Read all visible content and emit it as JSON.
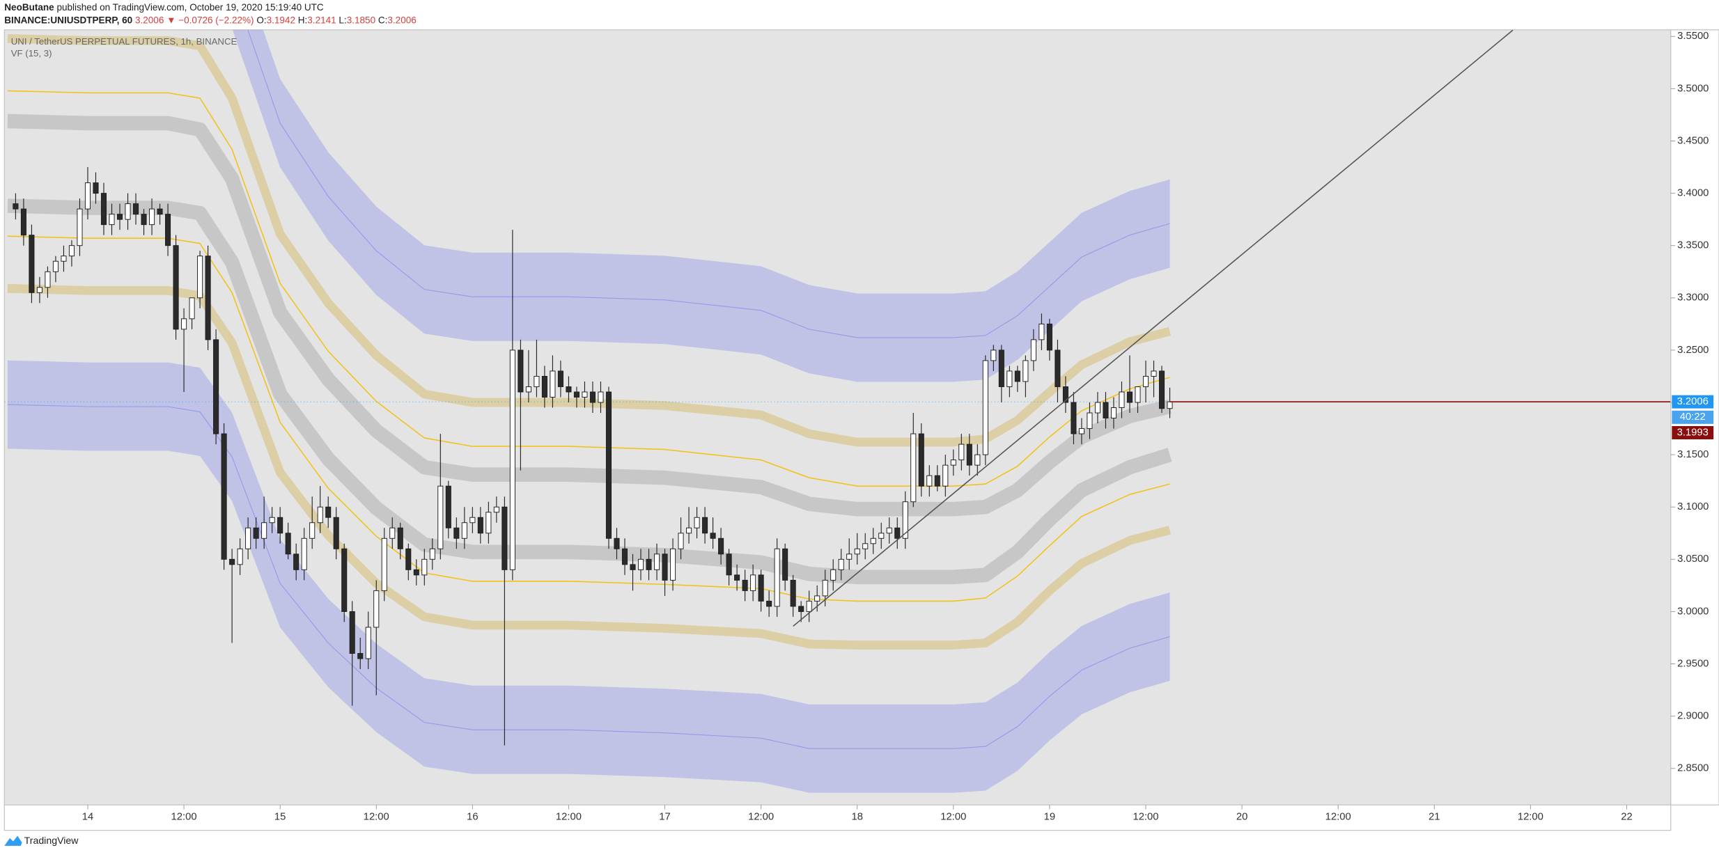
{
  "header": {
    "author": "NeoButane",
    "published": " published on TradingView.com, October 19, 2020 15:19:40 UTC",
    "symbol": "BINANCE:UNIUSDTPERP, 60",
    "price": "3.2006",
    "change": "▼ −0.0726 (−2.22%)",
    "ohlc": [
      {
        "key": "O:",
        "value": "3.1942"
      },
      {
        "key": "H:",
        "value": "3.2141"
      },
      {
        "key": "L:",
        "value": "3.1850"
      },
      {
        "key": "C:",
        "value": "3.2006"
      }
    ]
  },
  "chart_data": {
    "type": "candlestick",
    "title": "UNI / TetherUS PERPETUAL FUTURES, 1h, BINANCE",
    "subtitle": "VF (15, 3)",
    "up_color": "#ffffff",
    "down_color": "#2b2b2b",
    "wick_color": "#1e1e1e",
    "grid": false,
    "x": [
      -9,
      -8,
      -7,
      -6,
      -5,
      -4,
      -3,
      -2,
      -1,
      0,
      1,
      2,
      3,
      4,
      5,
      6,
      7,
      8,
      9,
      10,
      11,
      12,
      13,
      14,
      15,
      16,
      17,
      18,
      19,
      20,
      21,
      22,
      23,
      24,
      25,
      26,
      27,
      28,
      29,
      30,
      31,
      32,
      33,
      34,
      35,
      36,
      37,
      38,
      39,
      40,
      41,
      42,
      43,
      44,
      45,
      46,
      47,
      48,
      49,
      50,
      51,
      52,
      53,
      54,
      55,
      56,
      57,
      58,
      59,
      60,
      61,
      62,
      63,
      64,
      65,
      66,
      67,
      68,
      69,
      70,
      71,
      72,
      73,
      74,
      75,
      76,
      77,
      78,
      79,
      80,
      81,
      82,
      83,
      84,
      85,
      86,
      87,
      88,
      89,
      90,
      91,
      92,
      93,
      94,
      95,
      96,
      97,
      98,
      99,
      100,
      101,
      102,
      103,
      104,
      105,
      106,
      107,
      108,
      109,
      110,
      111,
      112,
      113,
      114,
      115,
      116,
      117,
      118,
      119,
      120,
      121,
      122,
      123,
      124,
      125,
      126,
      127,
      128,
      129,
      130,
      131,
      132,
      133,
      134,
      135
    ],
    "open": [
      3.39,
      3.385,
      3.36,
      3.305,
      3.31,
      3.325,
      3.335,
      3.34,
      3.35,
      3.385,
      3.41,
      3.4,
      3.37,
      3.38,
      3.375,
      3.39,
      3.38,
      3.37,
      3.385,
      3.38,
      3.35,
      3.27,
      3.28,
      3.3,
      3.34,
      3.26,
      3.17,
      3.05,
      3.045,
      3.06,
      3.08,
      3.07,
      3.085,
      3.09,
      3.075,
      3.055,
      3.04,
      3.07,
      3.085,
      3.1,
      3.09,
      3.06,
      3.0,
      2.96,
      2.955,
      2.985,
      3.02,
      3.07,
      3.08,
      3.06,
      3.04,
      3.035,
      3.05,
      3.06,
      3.12,
      3.08,
      3.07,
      3.085,
      3.09,
      3.075,
      3.095,
      3.1,
      3.04,
      3.25,
      3.21,
      3.215,
      3.225,
      3.205,
      3.23,
      3.215,
      3.21,
      3.205,
      3.21,
      3.2,
      3.21,
      3.07,
      3.06,
      3.045,
      3.04,
      3.05,
      3.04,
      3.055,
      3.03,
      3.06,
      3.075,
      3.08,
      3.09,
      3.075,
      3.07,
      3.055,
      3.035,
      3.03,
      3.02,
      3.035,
      3.01,
      3.005,
      3.06,
      3.03,
      3.005,
      3.0,
      3.01,
      3.015,
      3.03,
      3.04,
      3.05,
      3.055,
      3.06,
      3.065,
      3.07,
      3.075,
      3.08,
      3.07,
      3.105,
      3.17,
      3.12,
      3.13,
      3.12,
      3.14,
      3.145,
      3.16,
      3.14,
      3.15,
      3.24,
      3.25,
      3.215,
      3.23,
      3.22,
      3.24,
      3.26,
      3.275,
      3.25,
      3.215,
      3.2,
      3.17,
      3.175,
      3.19,
      3.2,
      3.185,
      3.195,
      3.21,
      3.2,
      3.215,
      3.225,
      3.23,
      3.1942
    ],
    "high": [
      3.4,
      3.395,
      3.37,
      3.32,
      3.33,
      3.34,
      3.35,
      3.355,
      3.395,
      3.425,
      3.42,
      3.41,
      3.39,
      3.39,
      3.4,
      3.4,
      3.385,
      3.395,
      3.39,
      3.39,
      3.36,
      3.29,
      3.3,
      3.345,
      3.35,
      3.27,
      3.18,
      3.06,
      3.07,
      3.09,
      3.09,
      3.11,
      3.1,
      3.1,
      3.085,
      3.065,
      3.08,
      3.11,
      3.12,
      3.11,
      3.1,
      3.065,
      3.01,
      2.975,
      3.0,
      3.03,
      3.08,
      3.09,
      3.085,
      3.065,
      3.05,
      3.06,
      3.07,
      3.17,
      3.125,
      3.09,
      3.1,
      3.1,
      3.1,
      3.105,
      3.11,
      3.11,
      3.365,
      3.26,
      3.25,
      3.26,
      3.235,
      3.245,
      3.24,
      3.225,
      3.215,
      3.22,
      3.22,
      3.22,
      3.215,
      3.08,
      3.07,
      3.055,
      3.06,
      3.06,
      3.065,
      3.06,
      3.07,
      3.09,
      3.1,
      3.1,
      3.1,
      3.09,
      3.08,
      3.06,
      3.045,
      3.04,
      3.045,
      3.04,
      3.02,
      3.07,
      3.065,
      3.035,
      3.01,
      3.02,
      3.025,
      3.04,
      3.05,
      3.06,
      3.07,
      3.075,
      3.075,
      3.08,
      3.085,
      3.09,
      3.09,
      3.115,
      3.19,
      3.18,
      3.14,
      3.14,
      3.15,
      3.155,
      3.17,
      3.17,
      3.16,
      3.245,
      3.255,
      3.255,
      3.235,
      3.235,
      3.245,
      3.27,
      3.285,
      3.28,
      3.26,
      3.225,
      3.21,
      3.185,
      3.2,
      3.21,
      3.21,
      3.205,
      3.22,
      3.245,
      3.215,
      3.24,
      3.24,
      3.235,
      3.2141
    ],
    "low": [
      3.375,
      3.35,
      3.295,
      3.295,
      3.3,
      3.315,
      3.325,
      3.33,
      3.34,
      3.375,
      3.39,
      3.36,
      3.36,
      3.365,
      3.365,
      3.37,
      3.36,
      3.36,
      3.37,
      3.34,
      3.26,
      3.21,
      3.27,
      3.29,
      3.25,
      3.16,
      3.04,
      2.97,
      3.035,
      3.05,
      3.06,
      3.06,
      3.075,
      3.065,
      3.05,
      3.03,
      3.03,
      3.06,
      3.075,
      3.08,
      3.05,
      2.99,
      2.91,
      2.945,
      2.945,
      2.92,
      3.01,
      3.06,
      3.05,
      3.03,
      3.025,
      3.025,
      3.04,
      3.05,
      3.07,
      3.06,
      3.06,
      3.075,
      3.065,
      3.065,
      3.085,
      2.872,
      3.03,
      3.135,
      3.2,
      3.205,
      3.195,
      3.195,
      3.205,
      3.2,
      3.195,
      3.195,
      3.19,
      3.19,
      3.06,
      3.05,
      3.035,
      3.02,
      3.03,
      3.03,
      3.03,
      3.015,
      3.02,
      3.05,
      3.065,
      3.07,
      3.065,
      3.06,
      3.045,
      3.025,
      3.02,
      3.01,
      3.01,
      3.0,
      2.995,
      2.995,
      3.02,
      2.995,
      2.99,
      2.99,
      3.0,
      3.005,
      3.02,
      3.03,
      3.04,
      3.045,
      3.05,
      3.055,
      3.06,
      3.065,
      3.06,
      3.06,
      3.1,
      3.11,
      3.11,
      3.115,
      3.11,
      3.13,
      3.135,
      3.13,
      3.13,
      3.14,
      3.23,
      3.2,
      3.205,
      3.21,
      3.205,
      3.23,
      3.25,
      3.24,
      3.2,
      3.19,
      3.16,
      3.16,
      3.165,
      3.18,
      3.175,
      3.175,
      3.185,
      3.19,
      3.19,
      3.2,
      3.205,
      3.19,
      3.185
    ],
    "close": [
      3.385,
      3.36,
      3.305,
      3.31,
      3.325,
      3.335,
      3.34,
      3.35,
      3.385,
      3.41,
      3.4,
      3.37,
      3.38,
      3.375,
      3.39,
      3.38,
      3.37,
      3.385,
      3.38,
      3.35,
      3.27,
      3.28,
      3.3,
      3.34,
      3.26,
      3.17,
      3.05,
      3.045,
      3.06,
      3.08,
      3.07,
      3.085,
      3.09,
      3.075,
      3.055,
      3.04,
      3.07,
      3.085,
      3.1,
      3.09,
      3.06,
      3.0,
      2.96,
      2.955,
      2.985,
      3.02,
      3.07,
      3.08,
      3.06,
      3.04,
      3.035,
      3.05,
      3.06,
      3.12,
      3.08,
      3.07,
      3.085,
      3.09,
      3.075,
      3.095,
      3.1,
      3.04,
      3.25,
      3.21,
      3.215,
      3.225,
      3.205,
      3.23,
      3.215,
      3.21,
      3.205,
      3.21,
      3.2,
      3.21,
      3.07,
      3.06,
      3.045,
      3.04,
      3.05,
      3.04,
      3.055,
      3.03,
      3.06,
      3.075,
      3.08,
      3.09,
      3.075,
      3.07,
      3.055,
      3.035,
      3.03,
      3.02,
      3.035,
      3.01,
      3.005,
      3.06,
      3.03,
      3.005,
      3.0,
      3.01,
      3.015,
      3.03,
      3.04,
      3.05,
      3.055,
      3.06,
      3.065,
      3.07,
      3.075,
      3.08,
      3.07,
      3.105,
      3.17,
      3.12,
      3.13,
      3.12,
      3.14,
      3.145,
      3.16,
      3.14,
      3.15,
      3.24,
      3.25,
      3.215,
      3.23,
      3.22,
      3.24,
      3.26,
      3.275,
      3.25,
      3.215,
      3.2,
      3.17,
      3.175,
      3.19,
      3.2,
      3.185,
      3.195,
      3.21,
      3.2,
      3.215,
      3.225,
      3.23,
      3.1942,
      3.2006
    ],
    "xlim": [
      -10.4,
      197.5
    ],
    "xticks": [
      {
        "value": 0,
        "label": "14"
      },
      {
        "value": 12,
        "label": "12:00"
      },
      {
        "value": 24,
        "label": "15"
      },
      {
        "value": 36,
        "label": "12:00"
      },
      {
        "value": 48,
        "label": "16"
      },
      {
        "value": 60,
        "label": "12:00"
      },
      {
        "value": 72,
        "label": "17"
      },
      {
        "value": 84,
        "label": "12:00"
      },
      {
        "value": 96,
        "label": "18"
      },
      {
        "value": 108,
        "label": "12:00"
      },
      {
        "value": 120,
        "label": "19"
      },
      {
        "value": 132,
        "label": "12:00"
      },
      {
        "value": 144,
        "label": "20"
      },
      {
        "value": 156,
        "label": "12:00"
      },
      {
        "value": 168,
        "label": "21"
      },
      {
        "value": 180,
        "label": "12:00"
      },
      {
        "value": 192,
        "label": "22"
      }
    ],
    "ylim": [
      2.8151,
      3.5563
    ],
    "yticks": [
      {
        "value": 2.85,
        "label": "2.8500"
      },
      {
        "value": 2.9,
        "label": "2.9000"
      },
      {
        "value": 2.95,
        "label": "2.9500"
      },
      {
        "value": 3.0,
        "label": "3.0000"
      },
      {
        "value": 3.05,
        "label": "3.0500"
      },
      {
        "value": 3.1,
        "label": "3.1000"
      },
      {
        "value": 3.15,
        "label": "3.1500"
      },
      {
        "value": 3.2,
        "label": "3.2000"
      },
      {
        "value": 3.25,
        "label": "3.2500"
      },
      {
        "value": 3.3,
        "label": "3.3000"
      },
      {
        "value": 3.35,
        "label": "3.3500"
      },
      {
        "value": 3.4,
        "label": "3.4000"
      },
      {
        "value": 3.45,
        "label": "3.4500"
      },
      {
        "value": 3.5,
        "label": "3.5000"
      },
      {
        "value": 3.55,
        "label": "3.5500"
      }
    ],
    "bands_x": [
      -10,
      0,
      10,
      14,
      18,
      24,
      30,
      36,
      42,
      48,
      60,
      72,
      84,
      90,
      96,
      108,
      112,
      116,
      120,
      124,
      130,
      135
    ],
    "bands": [
      {
        "style": "cloud",
        "color": "#9599e8",
        "values": [
          3.659,
          3.657,
          3.657,
          3.651,
          3.6,
          3.467,
          3.397,
          3.345,
          3.308,
          3.301,
          3.301,
          3.298,
          3.288,
          3.27,
          3.262,
          3.262,
          3.264,
          3.283,
          3.311,
          3.339,
          3.36,
          3.371
        ]
      },
      {
        "style": "cloud",
        "color": "#9599e8",
        "values": [
          3.198,
          3.196,
          3.196,
          3.191,
          3.148,
          3.027,
          2.97,
          2.927,
          2.894,
          2.887,
          2.887,
          2.884,
          2.879,
          2.869,
          2.869,
          2.869,
          2.871,
          2.89,
          2.919,
          2.944,
          2.965,
          2.976
        ]
      },
      {
        "style": "thick",
        "color": "#c7c7c7",
        "values": [
          3.469,
          3.467,
          3.467,
          3.461,
          3.414,
          3.286,
          3.222,
          3.173,
          3.138,
          3.131,
          3.131,
          3.128,
          3.119,
          3.103,
          3.098,
          3.098,
          3.1,
          3.116,
          3.143,
          3.167,
          3.187,
          3.196
        ]
      },
      {
        "style": "thick",
        "color": "#c7c7c7",
        "values": [
          3.388,
          3.386,
          3.386,
          3.381,
          3.334,
          3.208,
          3.146,
          3.099,
          3.064,
          3.057,
          3.057,
          3.054,
          3.047,
          3.036,
          3.033,
          3.033,
          3.035,
          3.057,
          3.088,
          3.116,
          3.138,
          3.15
        ]
      },
      {
        "style": "medium",
        "color": "#dccfa5",
        "values": [
          3.548,
          3.546,
          3.546,
          3.541,
          3.491,
          3.361,
          3.295,
          3.245,
          3.208,
          3.2,
          3.2,
          3.197,
          3.188,
          3.17,
          3.162,
          3.162,
          3.165,
          3.183,
          3.21,
          3.236,
          3.258,
          3.268
        ]
      },
      {
        "style": "medium",
        "color": "#dccfa5",
        "values": [
          3.309,
          3.307,
          3.307,
          3.302,
          3.257,
          3.133,
          3.073,
          3.027,
          2.995,
          2.987,
          2.987,
          2.984,
          2.979,
          2.969,
          2.968,
          2.968,
          2.97,
          2.99,
          3.02,
          3.046,
          3.068,
          3.078
        ]
      },
      {
        "style": "thin",
        "color": "#f2c21b",
        "values": [
          3.498,
          3.496,
          3.496,
          3.491,
          3.442,
          3.314,
          3.249,
          3.201,
          3.166,
          3.158,
          3.158,
          3.155,
          3.145,
          3.128,
          3.12,
          3.12,
          3.122,
          3.139,
          3.167,
          3.192,
          3.213,
          3.224
        ]
      },
      {
        "style": "thin",
        "color": "#f2c21b",
        "values": [
          3.359,
          3.357,
          3.357,
          3.352,
          3.305,
          3.181,
          3.118,
          3.072,
          3.037,
          3.029,
          3.029,
          3.026,
          3.022,
          3.012,
          3.01,
          3.01,
          3.013,
          3.034,
          3.063,
          3.091,
          3.112,
          3.122
        ]
      }
    ],
    "trendline": {
      "color": "#555555",
      "x": [
        88,
        177.8
      ],
      "y": [
        2.986,
        3.556
      ]
    },
    "last_price": 3.2006,
    "last_price_color": "#2196f3",
    "line_color": "#8b1a1a",
    "countdown": "40:22",
    "countdown_color": "#4aa3ee",
    "alt_price": 3.1993,
    "alt_price_color": "#8b0e0e"
  },
  "footer": {
    "brand": "TradingView"
  }
}
